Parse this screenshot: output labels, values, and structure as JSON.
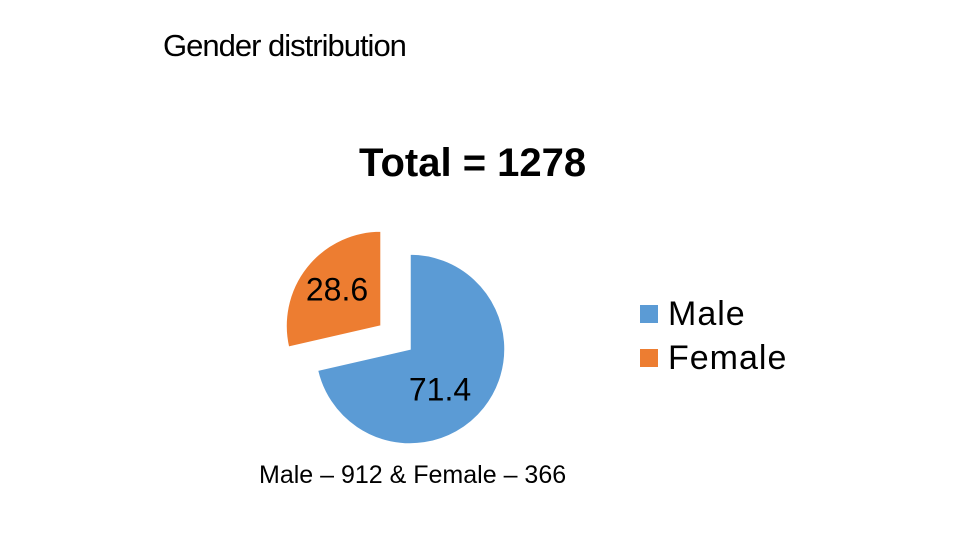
{
  "slide_title": "Gender distribution",
  "caption": "Male – 912 & Female – 366",
  "chart_data": {
    "type": "pie",
    "title": "Total = 1278",
    "slices": [
      {
        "label": "Male",
        "value": 71.4,
        "data_label": "71.4",
        "color": "#5B9BD5",
        "exploded": false
      },
      {
        "label": "Female",
        "value": 28.6,
        "data_label": "28.6",
        "color": "#ED7D31",
        "exploded": true
      }
    ],
    "legend": {
      "position": "right",
      "entries": [
        "Male",
        "Female"
      ]
    }
  }
}
